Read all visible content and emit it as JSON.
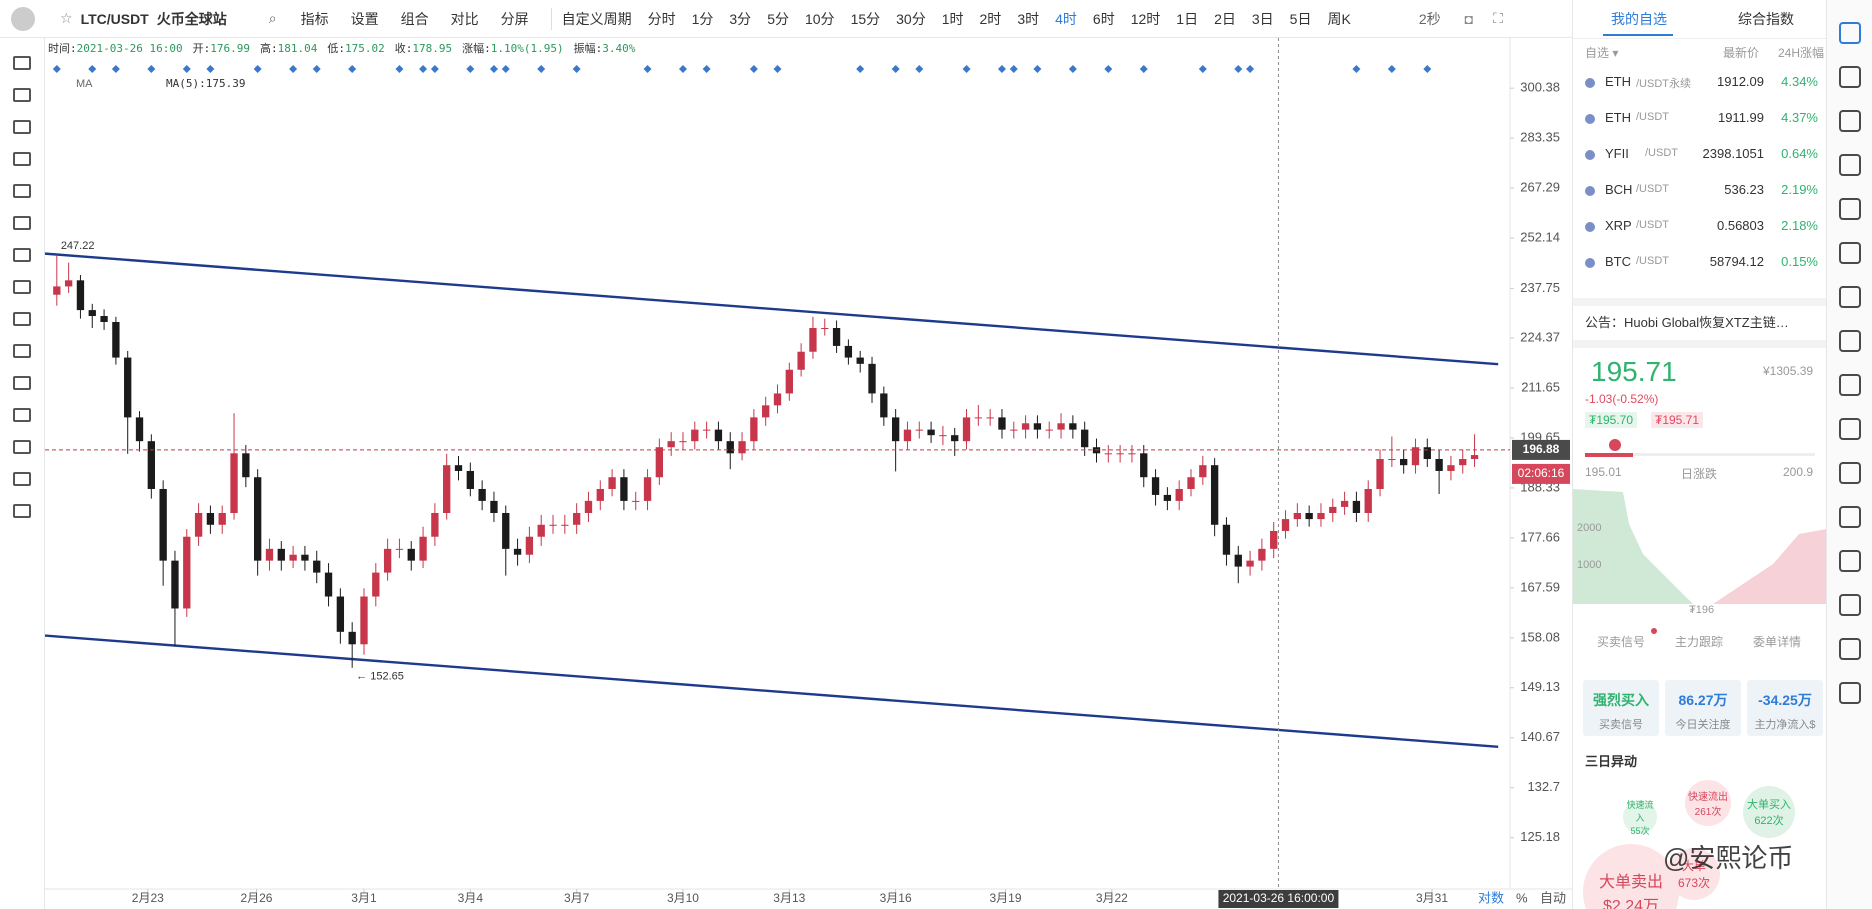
{
  "toolbar": {
    "symbol": "LTC/USDT",
    "exchange": "火币全球站",
    "tools": [
      "指标",
      "设置",
      "组合",
      "对比",
      "分屏"
    ],
    "period_label": "自定义周期",
    "periods": [
      "分时",
      "1分",
      "3分",
      "5分",
      "10分",
      "15分",
      "30分",
      "1时",
      "2时",
      "3时",
      "4时",
      "6时",
      "12时",
      "1日",
      "2日",
      "3日",
      "5日",
      "周K"
    ],
    "active_period": "4时",
    "refresh": "2秒"
  },
  "info_bar": [
    {
      "label": "时间:",
      "value": "2021-03-26 16:00"
    },
    {
      "label": "开:",
      "value": "176.99"
    },
    {
      "label": "高:",
      "value": "181.04"
    },
    {
      "label": "低:",
      "value": "175.02"
    },
    {
      "label": "收:",
      "value": "178.95"
    },
    {
      "label": "涨幅:",
      "value": "1.10%(1.95)"
    },
    {
      "label": "振幅:",
      "value": "3.40%"
    }
  ],
  "chart_data": {
    "type": "candlestick",
    "log_scale": true,
    "up_color": "#c7364a",
    "down_color": "#1b1b1b",
    "ma_label": "MA",
    "ma_value_label": "MA(5):175.39",
    "xlim": [
      -1,
      123
    ],
    "ylim": [
      117.9,
      318.5
    ],
    "yticks": [
      300.38,
      283.35,
      267.29,
      252.14,
      237.75,
      224.37,
      211.65,
      199.65,
      188.33,
      177.66,
      167.59,
      158.08,
      149.13,
      140.67,
      132.7,
      125.18
    ],
    "xticks": [
      {
        "value": 7.7,
        "label": "2月23"
      },
      {
        "value": 16.9,
        "label": "2月26"
      },
      {
        "value": 26,
        "label": "3月1"
      },
      {
        "value": 35,
        "label": "3月4"
      },
      {
        "value": 44,
        "label": "3月7"
      },
      {
        "value": 53,
        "label": "3月10"
      },
      {
        "value": 62,
        "label": "3月13"
      },
      {
        "value": 71,
        "label": "3月16"
      },
      {
        "value": 80.3,
        "label": "3月19"
      },
      {
        "value": 89.3,
        "label": "3月22"
      },
      {
        "value": 116.4,
        "label": "3月31"
      }
    ],
    "open": [
      236.0,
      238.3,
      240.0,
      231.8,
      230.2,
      228.6,
      219.3,
      204.5,
      198.9,
      188.1,
      173.0,
      163.6,
      177.9,
      182.9,
      180.4,
      182.9,
      196.1,
      190.7,
      173.0,
      175.4,
      173.0,
      174.2,
      173.0,
      170.6,
      165.9,
      159.2,
      156.9,
      165.9,
      170.6,
      175.4,
      175.4,
      173.0,
      177.9,
      182.9,
      193.4,
      192.1,
      188.1,
      185.5,
      182.9,
      175.4,
      174.2,
      177.9,
      180.4,
      180.4,
      180.4,
      182.9,
      185.5,
      188.1,
      190.7,
      185.5,
      185.5,
      190.7,
      197.5,
      198.9,
      198.9,
      201.6,
      201.6,
      198.9,
      196.1,
      198.9,
      204.5,
      207.4,
      210.3,
      216.2,
      220.8,
      227.0,
      227.0,
      222.3,
      219.3,
      217.7,
      210.3,
      204.5,
      198.9,
      201.6,
      201.6,
      200.3,
      200.3,
      198.9,
      204.5,
      204.5,
      204.5,
      201.6,
      201.6,
      203.1,
      201.6,
      201.6,
      203.1,
      201.6,
      197.5,
      196.1,
      196.1,
      196.1,
      196.1,
      190.7,
      186.8,
      185.5,
      188.1,
      190.7,
      193.4,
      180.4,
      174.2,
      171.8,
      173.0,
      175.4,
      179.1,
      181.6,
      182.9,
      181.6,
      182.9,
      184.2,
      185.5,
      182.9,
      188.1,
      194.8,
      194.8,
      193.4,
      197.5,
      194.8,
      192.1,
      193.4,
      194.8
    ],
    "high": [
      247.22,
      245.0,
      241.5,
      233.5,
      232.0,
      230.0,
      221.0,
      206.0,
      200.5,
      190.0,
      175.0,
      179.5,
      185.0,
      184.5,
      184.5,
      205.5,
      198.0,
      192.5,
      177.5,
      177.0,
      176.0,
      176.0,
      175.0,
      172.5,
      167.5,
      161.0,
      167.5,
      172.5,
      177.5,
      177.5,
      177.0,
      180.0,
      185.0,
      196.0,
      195.5,
      194.0,
      190.0,
      187.5,
      184.5,
      177.5,
      180.0,
      182.5,
      182.5,
      182.5,
      185.0,
      187.5,
      190.0,
      192.5,
      192.5,
      187.5,
      192.5,
      199.5,
      201.0,
      201.0,
      203.5,
      203.5,
      203.5,
      201.0,
      201.0,
      206.5,
      209.5,
      212.5,
      218.0,
      223.0,
      230.0,
      229.5,
      229.0,
      224.0,
      221.0,
      219.5,
      212.0,
      206.5,
      203.5,
      203.5,
      203.5,
      202.5,
      202.0,
      206.5,
      207.5,
      206.5,
      206.5,
      203.5,
      205.0,
      205.0,
      203.5,
      205.5,
      205.0,
      203.5,
      199.5,
      198.0,
      198.0,
      198.0,
      198.0,
      192.5,
      188.5,
      190.0,
      192.5,
      195.5,
      195.0,
      182.0,
      176.0,
      175.0,
      177.5,
      181.0,
      183.5,
      185.0,
      184.5,
      185.0,
      186.0,
      187.5,
      187.5,
      190.0,
      197.0,
      200.0,
      197.0,
      199.5,
      199.5,
      197.0,
      195.5,
      197.0,
      200.5
    ],
    "low": [
      233.0,
      236.5,
      229.5,
      227.0,
      226.5,
      217.5,
      196.0,
      196.5,
      186.0,
      168.0,
      156.5,
      162.0,
      176.0,
      178.5,
      178.5,
      181.5,
      188.5,
      170.0,
      171.0,
      171.0,
      171.5,
      171.0,
      168.5,
      164.0,
      157.0,
      152.65,
      155.0,
      164.0,
      169.0,
      173.5,
      171.0,
      171.5,
      176.0,
      181.5,
      190.0,
      186.5,
      183.5,
      181.0,
      170.0,
      172.0,
      172.5,
      176.0,
      178.5,
      178.5,
      178.5,
      181.0,
      183.5,
      186.5,
      183.5,
      183.5,
      183.5,
      189.0,
      195.5,
      197.0,
      197.0,
      199.5,
      197.0,
      192.5,
      194.5,
      197.0,
      202.5,
      205.5,
      208.5,
      214.5,
      219.0,
      225.0,
      220.5,
      217.5,
      215.5,
      208.0,
      202.5,
      192.0,
      197.0,
      199.5,
      198.5,
      198.0,
      195.5,
      197.0,
      202.5,
      202.5,
      199.5,
      199.5,
      199.5,
      199.5,
      199.5,
      199.5,
      199.5,
      195.5,
      194.0,
      194.0,
      194.0,
      194.0,
      188.5,
      184.5,
      183.5,
      183.5,
      186.5,
      189.0,
      178.0,
      172.0,
      168.5,
      170.0,
      171.0,
      173.5,
      177.5,
      180.0,
      180.0,
      180.0,
      181.0,
      182.5,
      181.0,
      181.0,
      186.5,
      193.0,
      191.5,
      191.5,
      193.0,
      187.0,
      190.0,
      191.5,
      193.0
    ],
    "close": [
      238.3,
      240.0,
      231.8,
      230.2,
      228.6,
      219.3,
      204.5,
      198.9,
      188.1,
      173.0,
      163.6,
      177.9,
      182.9,
      180.4,
      182.9,
      196.1,
      190.7,
      173.0,
      175.4,
      173.0,
      174.2,
      173.0,
      170.6,
      165.9,
      159.2,
      156.9,
      165.9,
      170.6,
      175.4,
      175.4,
      173.0,
      177.9,
      182.9,
      193.4,
      192.1,
      188.1,
      185.5,
      182.9,
      175.4,
      174.2,
      177.9,
      180.4,
      180.4,
      180.4,
      182.9,
      185.5,
      188.1,
      190.7,
      185.5,
      185.5,
      190.7,
      197.5,
      198.9,
      198.9,
      201.6,
      201.6,
      198.9,
      196.1,
      198.9,
      204.5,
      207.4,
      210.3,
      216.2,
      220.8,
      227.0,
      227.0,
      222.3,
      219.3,
      217.7,
      210.3,
      204.5,
      198.9,
      201.6,
      201.6,
      200.3,
      200.3,
      198.9,
      204.5,
      204.5,
      204.5,
      201.6,
      201.6,
      203.1,
      201.6,
      201.6,
      203.1,
      201.6,
      197.5,
      196.1,
      196.1,
      196.1,
      196.1,
      190.7,
      186.8,
      185.5,
      188.1,
      190.7,
      193.4,
      180.4,
      174.2,
      171.8,
      173.0,
      175.4,
      179.1,
      181.6,
      182.9,
      181.6,
      182.9,
      184.2,
      185.5,
      182.9,
      188.1,
      194.8,
      194.8,
      193.4,
      197.5,
      194.8,
      192.1,
      193.4,
      194.8,
      195.7
    ],
    "annotations": [
      {
        "index": 0,
        "value": 247.22,
        "label": "247.22"
      },
      {
        "index": 25,
        "value": 152.65,
        "label": "← 152.65"
      }
    ],
    "trendlines": [
      {
        "color": "#1e3a8c",
        "x": [
          -1,
          122
        ],
        "y": [
          247.6,
          217.6
        ]
      },
      {
        "color": "#1e3a8c",
        "x": [
          -1,
          122
        ],
        "y": [
          158.5,
          139.2
        ]
      }
    ],
    "signals": [
      0,
      3,
      5,
      8,
      11,
      13,
      17,
      20,
      22,
      25,
      29,
      31,
      32,
      35,
      37,
      38,
      41,
      44,
      50,
      53,
      55,
      59,
      61,
      68,
      71,
      73,
      77,
      80,
      81,
      83,
      86,
      89,
      92,
      97,
      100,
      101,
      110,
      113,
      116
    ],
    "signal_color": "#3a78c9",
    "last_price": 196.88,
    "countdown": "02:06:16",
    "crosshair": {
      "x": 103.4,
      "label": "2021-03-26 16:00:00"
    }
  },
  "axis_footer": {
    "log": "对数",
    "percent": "%",
    "auto": "自动"
  },
  "sidebar": {
    "tabs": [
      "我的自选",
      "综合指数"
    ],
    "header": {
      "filter": "自选 ▾",
      "price": "最新价",
      "change": "24H涨幅"
    },
    "rows": [
      {
        "name": "ETH",
        "quote": "/USDT永续",
        "price": "1912.09",
        "change": "4.34%"
      },
      {
        "name": "ETH",
        "quote": "/USDT",
        "price": "1911.99",
        "change": "4.37%"
      },
      {
        "name": "YFII",
        "quote": "/USDT",
        "price": "2398.1051",
        "change": "0.64%"
      },
      {
        "name": "BCH",
        "quote": "/USDT",
        "price": "536.23",
        "change": "2.19%"
      },
      {
        "name": "XRP",
        "quote": "/USDT",
        "price": "0.56803",
        "change": "2.18%"
      },
      {
        "name": "BTC",
        "quote": "/USDT",
        "price": "58794.12",
        "change": "0.15%"
      }
    ],
    "notice": "公告：Huobi Global恢复XTZ主链…",
    "price": "195.71",
    "price_cny": "¥1305.39",
    "price_change": "-1.03(-0.52%)",
    "bid_tag": "₮195.70",
    "ask_tag": "₮195.71",
    "day_low": "195.01",
    "day_label": "日涨跌",
    "day_high": "200.9",
    "depth_labels": [
      "2000",
      "1000"
    ],
    "depth_mid": "₮196",
    "sub_tabs": [
      "买卖信号",
      "主力跟踪",
      "委单详情"
    ],
    "cards": [
      {
        "value": "强烈买入",
        "label": "买卖信号"
      },
      {
        "value": "86.27万",
        "label": "今日关注度"
      },
      {
        "value": "-34.25万",
        "label": "主力净流入$"
      }
    ],
    "movers_title": "三日异动",
    "bubbles": [
      {
        "title": "快速流入",
        "count": "55次"
      },
      {
        "title": "快速流出",
        "count": "261次"
      },
      {
        "title": "大单买入",
        "count": "622次"
      },
      {
        "title": "大单卖出",
        "count": "$2.24万"
      },
      {
        "title": "大单",
        "count": "673次"
      }
    ]
  },
  "watermark": "@安熙论币"
}
